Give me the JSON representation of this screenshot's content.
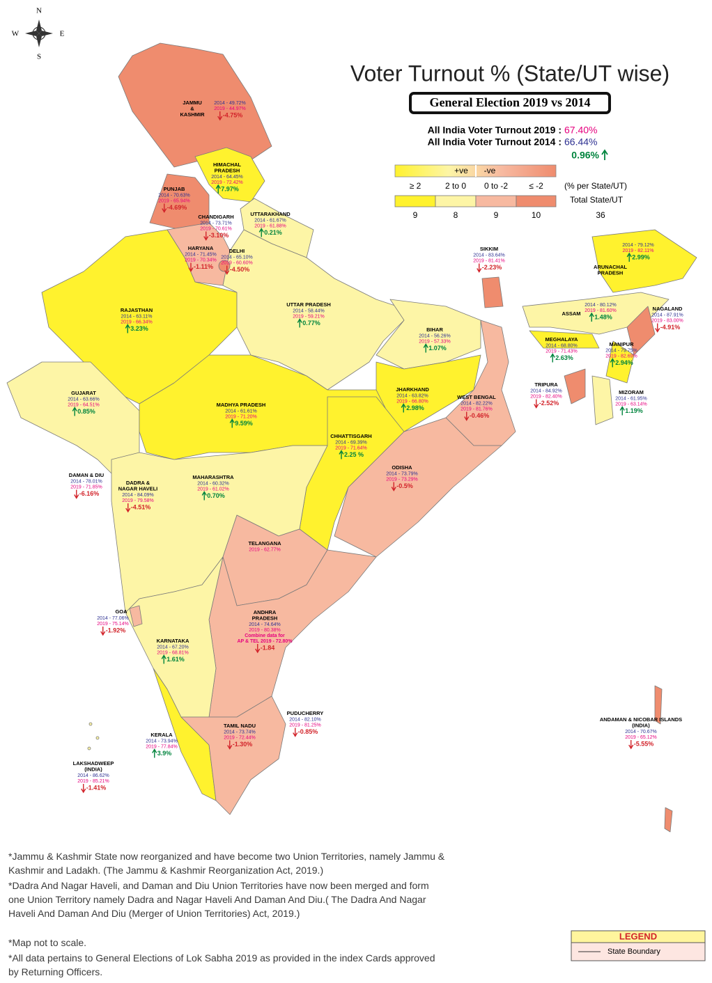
{
  "compass": {
    "n": "N",
    "w": "W",
    "e": "E",
    "s": "S"
  },
  "title": "Voter Turnout % (State/UT wise)",
  "subtitle": "General Election 2019 vs 2014",
  "summary": {
    "label2019": "All India Voter Turnout 2019 :",
    "value2019": "67.40%",
    "label2014": "All India Voter Turnout 2014 :",
    "value2014": "66.44%",
    "change": "0.96%"
  },
  "scale": {
    "positive": "+ve",
    "negative": "-ve",
    "unit_label": "(% per State/UT)",
    "total_label": "Total State/UT",
    "total": 36,
    "bins": [
      {
        "label": "≥ 2",
        "count": 9,
        "color": "#fff22e"
      },
      {
        "label": "2 to 0",
        "count": 8,
        "color": "#fdf5a6"
      },
      {
        "label": "0 to -2",
        "count": 9,
        "color": "#f7b9a0"
      },
      {
        "label": "≤ -2",
        "count": 10,
        "color": "#ef8c6e"
      }
    ]
  },
  "regions": [
    {
      "name": [
        "JAMMU",
        "&",
        "KASHMIR"
      ],
      "l2014": "2014 - 49.72%",
      "l2019": "2019 - 44.97%",
      "change": "-4.75%"
    },
    {
      "name": [
        "HIMACHAL",
        "PRADESH"
      ],
      "l2014": "2014 - 64.45%",
      "l2019": "2019 - 72.42%",
      "change": "7.97%"
    },
    {
      "name": [
        "PUNJAB"
      ],
      "l2014": "2014 - 70.63%",
      "l2019": "2019 - 65.94%",
      "change": "-4.69%"
    },
    {
      "name": [
        "CHANDIGARH"
      ],
      "l2014": "2014 - 73.71%",
      "l2019": "2019 - 70.61%",
      "change": "-3.10%"
    },
    {
      "name": [
        "UTTARAKHAND"
      ],
      "l2014": "2014 - 61.67%",
      "l2019": "2019 - 61.88%",
      "change": "0.21%"
    },
    {
      "name": [
        "HARYANA"
      ],
      "l2014": "2014 - 71.45%",
      "l2019": "2019 - 70.34%",
      "change": "-1.11%"
    },
    {
      "name": [
        "DELHI"
      ],
      "l2014": "2014 - 65.10%",
      "l2019": "2019 - 60.60%",
      "change": "-4.50%"
    },
    {
      "name": [
        "RAJASTHAN"
      ],
      "l2014": "2014 - 63.11%",
      "l2019": "2019 - 66.34%",
      "change": "3.23%"
    },
    {
      "name": [
        "UTTAR PRADESH"
      ],
      "l2014": "2014 - 58.44%",
      "l2019": "2019 - 59.21%",
      "change": "0.77%"
    },
    {
      "name": [
        "BIHAR"
      ],
      "l2014": "2014 - 56.26%",
      "l2019": "2019 - 57.33%",
      "change": "1.07%"
    },
    {
      "name": [
        "SIKKIM"
      ],
      "l2014": "2014 - 83.64%",
      "l2019": "2019 - 81.41%",
      "change": "-2.23%"
    },
    {
      "name": [
        "ARUNACHAL",
        "PRADESH"
      ],
      "l2014": "2014 - 79.12%",
      "l2019": "2019 - 82.11%",
      "change": "2.99%"
    },
    {
      "name": [
        "ASSAM"
      ],
      "l2014": "2014 - 80.12%",
      "l2019": "2019 - 81.60%",
      "change": "1.48%"
    },
    {
      "name": [
        "NAGALAND"
      ],
      "l2014": "2014 - 87.91%",
      "l2019": "2019 - 83.00%",
      "change": "-4.91%"
    },
    {
      "name": [
        "MEGHALAYA"
      ],
      "l2014": "2014 - 68.80%",
      "l2019": "2019 - 71.43%",
      "change": "2.63%"
    },
    {
      "name": [
        "MANIPUR"
      ],
      "l2014": "2014 - 79.75%",
      "l2019": "2019 - 82.69%",
      "change": "2.94%"
    },
    {
      "name": [
        "TRIPURA"
      ],
      "l2014": "2014 - 84.92%",
      "l2019": "2019 - 82.40%",
      "change": "-2.52%"
    },
    {
      "name": [
        "MIZORAM"
      ],
      "l2014": "2014 - 61.95%",
      "l2019": "2019 - 63.14%",
      "change": "1.19%"
    },
    {
      "name": [
        "GUJARAT"
      ],
      "l2014": "2014 - 63.66%",
      "l2019": "2019 - 64.51%",
      "change": "0.85%"
    },
    {
      "name": [
        "MADHYA PRADESH"
      ],
      "l2014": "2014 - 61.61%",
      "l2019": "2019 - 71.20%",
      "change": "9.59%"
    },
    {
      "name": [
        "JHARKHAND"
      ],
      "l2014": "2014 - 63.82%",
      "l2019": "2019 - 66.80%",
      "change": "2.98%"
    },
    {
      "name": [
        "WEST BENGAL"
      ],
      "l2014": "2014 - 82.22%",
      "l2019": "2019 - 81.76%",
      "change": "-0.46%"
    },
    {
      "name": [
        "CHHATTISGARH"
      ],
      "l2014": "2014 - 69.39%",
      "l2019": "2019 - 71.64%",
      "change": "2.25 %"
    },
    {
      "name": [
        "ODISHA"
      ],
      "l2014": "2014 - 73.79%",
      "l2019": "2019 - 73.29%",
      "change": "-0.5%"
    },
    {
      "name": [
        "DAMAN & DIU"
      ],
      "l2014": "2014 - 78.01%",
      "l2019": "2019 - 71.85%",
      "change": "-6.16%"
    },
    {
      "name": [
        "DADRA &",
        "NAGAR HAVELI"
      ],
      "l2014": "2014 - 84.09%",
      "l2019": "2019 - 79.58%",
      "change": "-4.51%"
    },
    {
      "name": [
        "MAHARASHTRA"
      ],
      "l2014": "2014 - 60.32%",
      "l2019": "2019 - 61.02%",
      "change": "0.70%"
    },
    {
      "name": [
        "TELANGANA"
      ],
      "l2019": "2019 - 62.77%"
    },
    {
      "name": [
        "GOA"
      ],
      "l2014": "2014 - 77.06%",
      "l2019": "2019 - 75.14%",
      "change": "-1.92%"
    },
    {
      "name": [
        "ANDHRA",
        "PRADESH"
      ],
      "l2014": "2014 - 74.64%",
      "l2019": "2019 - 80.38%",
      "note": [
        "Combine data for",
        "AP & TEL 2019 - 72.80%"
      ],
      "change": "-1.84"
    },
    {
      "name": [
        "KARNATAKA"
      ],
      "l2014": "2014 - 67.20%",
      "l2019": "2019 - 68.81%",
      "change": "1.61%"
    },
    {
      "name": [
        "PUDUCHERRY"
      ],
      "l2014": "2014 - 82.10%",
      "l2019": "2019 - 81.25%",
      "change": "-0.85%"
    },
    {
      "name": [
        "TAMIL NADU"
      ],
      "l2014": "2014 - 73.74%",
      "l2019": "2019 - 72.44%",
      "change": "-1.30%"
    },
    {
      "name": [
        "KERALA"
      ],
      "l2014": "2014 - 73.94%",
      "l2019": "2019 - 77.84%",
      "change": "3.9%"
    },
    {
      "name": [
        "LAKSHADWEEP",
        "(INDIA)"
      ],
      "l2014": "2014 - 86.62%",
      "l2019": "2019 - 85.21%",
      "change": "-1.41%"
    },
    {
      "name": [
        "ANDAMAN & NICOBAR ISLANDS",
        "(INDIA)"
      ],
      "l2014": "2014 - 70.67%",
      "l2019": "2019 - 65.12%",
      "change": "-5.55%"
    }
  ],
  "notes": [
    "*Jammu & Kashmir State now reorganized and have become two Union Territories, namely Jammu & Kashmir and Ladakh. (The Jammu & Kashmir Reorganization Act, 2019.)",
    "*Dadra And Nagar Haveli, and Daman and Diu Union Territories have now been merged and form one Union Territory namely Dadra and Nagar Haveli And Daman And Diu.( The Dadra And Nagar Haveli And Daman And Diu (Merger of Union Territories) Act, 2019.)",
    "*Map not to scale.",
    "*All data pertains to General Elections of Lok Sabha 2019 as provided in the index Cards approved by Returning Officers."
  ],
  "legend": {
    "title": "LEGEND",
    "item": "State Boundary"
  }
}
